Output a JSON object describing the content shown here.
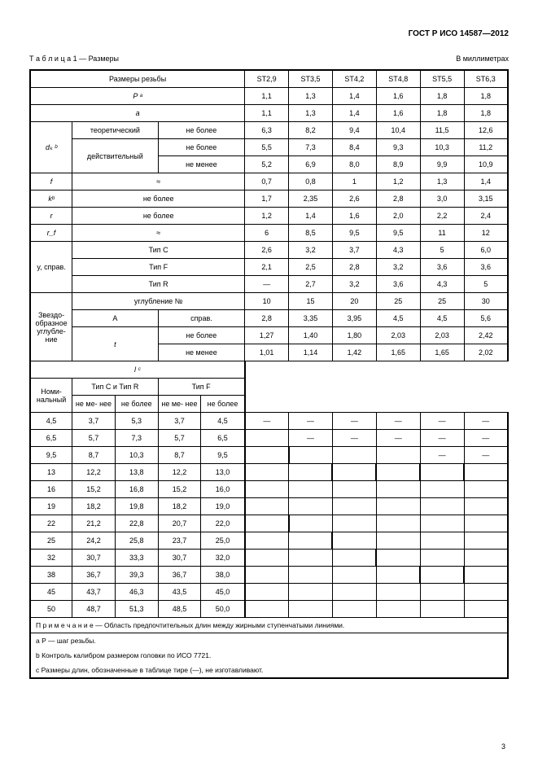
{
  "doc_num": "ГОСТ Р ИСО 14587—2012",
  "table_label_left": "Т а б л и ц а 1 — Размеры",
  "table_label_right": "В миллиметрах",
  "hdr_size": "Размеры резьбы",
  "hdr_cols": [
    "ST2,9",
    "ST3,5",
    "ST4,2",
    "ST4,8",
    "ST5,5",
    "ST6,3"
  ],
  "row_P_label": "P ᵃ",
  "row_P": [
    "1,1",
    "1,3",
    "1,4",
    "1,6",
    "1,8",
    "1,8"
  ],
  "row_a_label": "a",
  "row_a": [
    "1,1",
    "1,3",
    "1,4",
    "1,6",
    "1,8",
    "1,8"
  ],
  "dk_label": "dₖ ᵇ",
  "dk_theor": "теоретический",
  "dk_theor_cond": "не более",
  "dk_theor_vals": [
    "6,3",
    "8,2",
    "9,4",
    "10,4",
    "11,5",
    "12,6"
  ],
  "dk_act": "действительный",
  "dk_act_max": "не более",
  "dk_act_max_vals": [
    "5,5",
    "7,3",
    "8,4",
    "9,3",
    "10,3",
    "11,2"
  ],
  "dk_act_min": "не менее",
  "dk_act_min_vals": [
    "5,2",
    "6,9",
    "8,0",
    "8,9",
    "9,9",
    "10,9"
  ],
  "row_f_label": "f",
  "row_f_cond": "≈",
  "row_f": [
    "0,7",
    "0,8",
    "1",
    "1,2",
    "1,3",
    "1,4"
  ],
  "row_kb_label": "kᵇ",
  "row_kb_cond": "не более",
  "row_kb": [
    "1,7",
    "2,35",
    "2,6",
    "2,8",
    "3,0",
    "3,15"
  ],
  "row_r_label": "r",
  "row_r_cond": "не более",
  "row_r": [
    "1,2",
    "1,4",
    "1,6",
    "2,0",
    "2,2",
    "2,4"
  ],
  "row_rf_label": "r_f",
  "row_rf_cond": "≈",
  "row_rf": [
    "6",
    "8,5",
    "9,5",
    "9,5",
    "11",
    "12"
  ],
  "y_label": "y, справ.",
  "y_tipC": "Тип C",
  "y_tipC_vals": [
    "2,6",
    "3,2",
    "3,7",
    "4,3",
    "5",
    "6,0"
  ],
  "y_tipF": "Тип F",
  "y_tipF_vals": [
    "2,1",
    "2,5",
    "2,8",
    "3,2",
    "3,6",
    "3,6"
  ],
  "y_tipR": "Тип R",
  "y_tipR_vals": [
    "—",
    "2,7",
    "3,2",
    "3,6",
    "4,3",
    "5"
  ],
  "star_label": "Звездо- образное углубле- ние",
  "star_ugl": "углубление №",
  "star_ugl_vals": [
    "10",
    "15",
    "20",
    "25",
    "25",
    "30"
  ],
  "star_A": "A",
  "star_A_cond": "справ.",
  "star_A_vals": [
    "2,8",
    "3,35",
    "3,95",
    "4,5",
    "4,5",
    "5,6"
  ],
  "star_t": "t",
  "star_t_max": "не более",
  "star_t_max_vals": [
    "1,27",
    "1,40",
    "1,80",
    "2,03",
    "2,03",
    "2,42"
  ],
  "star_t_min": "не менее",
  "star_t_min_vals": [
    "1,01",
    "1,14",
    "1,42",
    "1,65",
    "1,65",
    "2,02"
  ],
  "l_label": "l ᶜ",
  "nom_label": "Номи- нальный",
  "tipCR": "Тип С и Тип R",
  "tipF": "Тип F",
  "min": "не ме- нее",
  "max": "не более",
  "len_rows": [
    {
      "n": "4,5",
      "cr": [
        "3,7",
        "5,3"
      ],
      "f": [
        "3,7",
        "4,5"
      ],
      "d": [
        "—",
        "—",
        "—",
        "—",
        "—",
        "—"
      ],
      "bold": [
        0,
        0,
        0,
        0,
        0,
        0,
        0
      ]
    },
    {
      "n": "6,5",
      "cr": [
        "5,7",
        "7,3"
      ],
      "f": [
        "5,7",
        "6,5"
      ],
      "d": [
        "",
        "—",
        "—",
        "—",
        "—",
        "—"
      ],
      "bold": [
        1,
        0,
        0,
        0,
        0,
        0,
        0
      ]
    },
    {
      "n": "9,5",
      "cr": [
        "8,7",
        "10,3"
      ],
      "f": [
        "8,7",
        "9,5"
      ],
      "d": [
        "",
        "",
        "",
        "",
        "—",
        "—"
      ],
      "bold": [
        0,
        1,
        0,
        0,
        0,
        0,
        1
      ]
    },
    {
      "n": "13",
      "cr": [
        "12,2",
        "13,8"
      ],
      "f": [
        "12,2",
        "13,0"
      ],
      "d": [
        "",
        "",
        "",
        "",
        "",
        ""
      ],
      "bold": [
        0,
        0,
        1,
        1,
        1,
        1,
        0
      ]
    },
    {
      "n": "16",
      "cr": [
        "15,2",
        "16,8"
      ],
      "f": [
        "15,2",
        "16,0"
      ],
      "d": [
        "",
        "",
        "",
        "",
        "",
        ""
      ],
      "bold": [
        0,
        0,
        0,
        0,
        0,
        0,
        0
      ]
    },
    {
      "n": "19",
      "cr": [
        "18,2",
        "19,8"
      ],
      "f": [
        "18,2",
        "19,0"
      ],
      "d": [
        "",
        "",
        "",
        "",
        "",
        ""
      ],
      "bold": [
        1,
        0,
        0,
        0,
        0,
        0,
        0
      ]
    },
    {
      "n": "22",
      "cr": [
        "21,2",
        "22,8"
      ],
      "f": [
        "20,7",
        "22,0"
      ],
      "d": [
        "",
        "",
        "",
        "",
        "",
        ""
      ],
      "bold": [
        0,
        1,
        0,
        0,
        0,
        0,
        0
      ]
    },
    {
      "n": "25",
      "cr": [
        "24,2",
        "25,8"
      ],
      "f": [
        "23,7",
        "25,0"
      ],
      "d": [
        "",
        "",
        "",
        "",
        "",
        ""
      ],
      "bold": [
        0,
        0,
        1,
        0,
        0,
        0,
        0
      ]
    },
    {
      "n": "32",
      "cr": [
        "30,7",
        "33,3"
      ],
      "f": [
        "30,7",
        "32,0"
      ],
      "d": [
        "",
        "",
        "",
        "",
        "",
        ""
      ],
      "bold": [
        0,
        0,
        0,
        1,
        0,
        0,
        0
      ]
    },
    {
      "n": "38",
      "cr": [
        "36,7",
        "39,3"
      ],
      "f": [
        "36,7",
        "38,0"
      ],
      "d": [
        "",
        "",
        "",
        "",
        "",
        ""
      ],
      "bold": [
        0,
        0,
        0,
        0,
        1,
        1,
        0
      ]
    },
    {
      "n": "45",
      "cr": [
        "43,7",
        "46,3"
      ],
      "f": [
        "43,5",
        "45,0"
      ],
      "d": [
        "",
        "",
        "",
        "",
        "",
        ""
      ],
      "bold": [
        0,
        0,
        0,
        0,
        0,
        0,
        1
      ]
    },
    {
      "n": "50",
      "cr": [
        "48,7",
        "51,3"
      ],
      "f": [
        "48,5",
        "50,0"
      ],
      "d": [
        "",
        "",
        "",
        "",
        "",
        ""
      ],
      "bold": [
        0,
        0,
        0,
        0,
        0,
        0,
        0
      ]
    }
  ],
  "note_text": "П р и м е ч а н и е — Область предпочтительных длин между жирными ступенчатыми линиями.",
  "fn_a": "a   P — шаг резьбы.",
  "fn_b": "b   Контроль калибром размером головки по ИСО 7721.",
  "fn_c": "c   Размеры длин, обозначенные в таблице тире (—), не изготавливают.",
  "page_num": "3",
  "colors": {
    "bg": "#ffffff",
    "ink": "#000000"
  }
}
